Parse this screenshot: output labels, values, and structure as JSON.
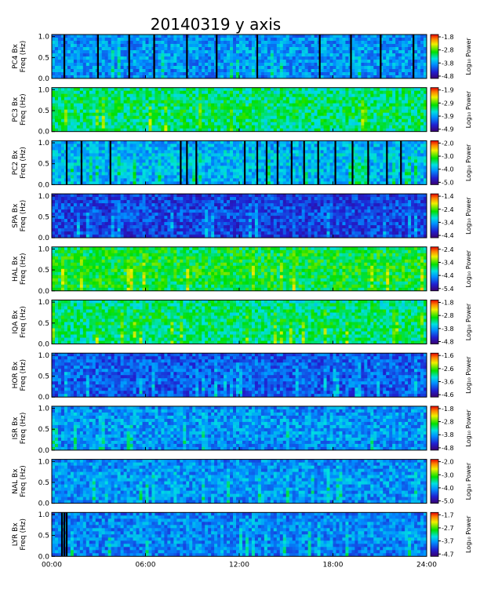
{
  "chart_data": {
    "type": "heatmap",
    "title": "20140319 y axis",
    "x_axis": {
      "range_hours": [
        0,
        24
      ],
      "tick_labels": [
        "00:00",
        "06:00",
        "12:00",
        "18:00",
        "24:00"
      ],
      "tick_values": [
        0,
        6,
        12,
        18,
        24
      ]
    },
    "colormap": "rainbow (purple-blue-cyan-green-yellow-red)",
    "panels": [
      {
        "station": "PC4",
        "ylabel": "PC4 Bx\nFreq (Hz)",
        "ylim": [
          0,
          1.05
        ],
        "yticks": [
          "1.0",
          "0.5",
          "0.0"
        ],
        "colorbar_label": "Log₁₀ Power",
        "colorbar_range": [
          -4.8,
          -1.8
        ],
        "colorbar_ticks": [
          "-1.8",
          "-2.8",
          "-3.8",
          "-4.8"
        ],
        "background_level": 0.3,
        "gaps_hours": [
          0.75,
          2.9,
          4.9,
          6.5,
          8.6,
          10.5,
          13.1,
          17.1,
          19.1,
          21.0,
          23.1
        ]
      },
      {
        "station": "PC3",
        "ylabel": "PC3 Bx\nFreq (Hz)",
        "ylim": [
          0,
          1.05
        ],
        "yticks": [
          "1.0",
          "0.5",
          "0.0"
        ],
        "colorbar_label": "Log₁₀ Power",
        "colorbar_range": [
          -4.9,
          -1.9
        ],
        "colorbar_ticks": [
          "-1.9",
          "-2.9",
          "-3.9",
          "-4.9"
        ],
        "background_level": 0.5,
        "gaps_hours": []
      },
      {
        "station": "PC2",
        "ylabel": "PC2 Bx\nFreq (Hz)",
        "ylim": [
          0,
          1.05
        ],
        "yticks": [
          "1.0",
          "0.5",
          "0.0"
        ],
        "colorbar_label": "Log₁₀ Power",
        "colorbar_range": [
          -5.0,
          -2.0
        ],
        "colorbar_ticks": [
          "-2.0",
          "-3.0",
          "-4.0",
          "-5.0"
        ],
        "background_level": 0.35,
        "gaps_hours": [
          0.9,
          1.85,
          3.7,
          8.2,
          8.6,
          9.2,
          12.3,
          13.1,
          13.7,
          14.4,
          15.3,
          16.1,
          17.0,
          18.1,
          19.2,
          20.2,
          21.4,
          22.3
        ]
      },
      {
        "station": "SPA",
        "ylabel": "SPA Bx\nFreq (Hz)",
        "ylim": [
          0,
          1.05
        ],
        "yticks": [
          "1.0",
          "0.5",
          "0.0"
        ],
        "colorbar_label": "Log₁₀ Power",
        "colorbar_range": [
          -4.4,
          -1.4
        ],
        "colorbar_ticks": [
          "-1.4",
          "-2.4",
          "-3.4",
          "-4.4"
        ],
        "background_level": 0.18,
        "gaps_hours": []
      },
      {
        "station": "HAL",
        "ylabel": "HAL Bx\nFreq (Hz)",
        "ylim": [
          0,
          1.05
        ],
        "yticks": [
          "1.0",
          "0.5",
          "0.0"
        ],
        "colorbar_label": "Log₁₀ Power",
        "colorbar_range": [
          -5.4,
          -2.4
        ],
        "colorbar_ticks": [
          "-2.4",
          "-3.4",
          "-4.4",
          "-5.4"
        ],
        "background_level": 0.55,
        "gaps_hours": []
      },
      {
        "station": "IQA",
        "ylabel": "IQA Bx\nFreq (Hz)",
        "ylim": [
          0,
          1.05
        ],
        "yticks": [
          "1.0",
          "0.5",
          "0.0"
        ],
        "colorbar_label": "Log₁₀ Power",
        "colorbar_range": [
          -4.8,
          -1.8
        ],
        "colorbar_ticks": [
          "-1.8",
          "-2.8",
          "-3.8",
          "-4.8"
        ],
        "background_level": 0.5,
        "gaps_hours": []
      },
      {
        "station": "HOR",
        "ylabel": "HOR Bx\nFreq (Hz)",
        "ylim": [
          0,
          1.05
        ],
        "yticks": [
          "1.0",
          "0.5",
          "0.0"
        ],
        "colorbar_label": "Log₁₀ Power",
        "colorbar_range": [
          -4.6,
          -1.6
        ],
        "colorbar_ticks": [
          "-1.6",
          "-2.6",
          "-3.6",
          "-4.6"
        ],
        "background_level": 0.22,
        "gaps_hours": []
      },
      {
        "station": "ISR",
        "ylabel": "ISR Bx\nFreq (Hz)",
        "ylim": [
          0,
          1.05
        ],
        "yticks": [
          "1.0",
          "0.5",
          "0.0"
        ],
        "colorbar_label": "Log₁₀ Power",
        "colorbar_range": [
          -4.8,
          -1.8
        ],
        "colorbar_ticks": [
          "-1.8",
          "-2.8",
          "-3.8",
          "-4.8"
        ],
        "background_level": 0.3,
        "gaps_hours": []
      },
      {
        "station": "NAL",
        "ylabel": "NAL Bx\nFreq (Hz)",
        "ylim": [
          0,
          1.05
        ],
        "yticks": [
          "1.0",
          "0.5",
          "0.0"
        ],
        "colorbar_label": "Log₁₀ Power",
        "colorbar_range": [
          -5.0,
          -2.0
        ],
        "colorbar_ticks": [
          "-2.0",
          "-3.0",
          "-4.0",
          "-5.0"
        ],
        "background_level": 0.3,
        "gaps_hours": []
      },
      {
        "station": "LYR",
        "ylabel": "LYR Bx\nFreq (Hz)",
        "ylim": [
          0,
          1.05
        ],
        "yticks": [
          "1.0",
          "0.5",
          "0.0"
        ],
        "colorbar_label": "Log₁₀ Power",
        "colorbar_range": [
          -4.7,
          -1.7
        ],
        "colorbar_ticks": [
          "-1.7",
          "-2.7",
          "-3.7",
          "-4.7"
        ],
        "background_level": 0.28,
        "gaps_hours": [
          0.6,
          0.75,
          0.9
        ]
      }
    ]
  }
}
